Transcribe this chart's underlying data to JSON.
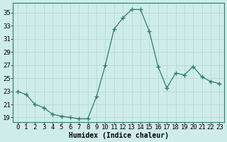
{
  "x": [
    0,
    1,
    2,
    3,
    4,
    5,
    6,
    7,
    8,
    9,
    10,
    11,
    12,
    13,
    14,
    15,
    16,
    17,
    18,
    19,
    20,
    21,
    22,
    23
  ],
  "y": [
    23.0,
    22.5,
    21.0,
    20.5,
    19.5,
    19.2,
    19.0,
    18.8,
    18.8,
    22.2,
    27.0,
    32.5,
    34.2,
    35.5,
    35.5,
    32.2,
    26.8,
    23.5,
    25.8,
    25.5,
    26.8,
    25.2,
    24.5,
    24.2
  ],
  "line_color": "#2d7d6e",
  "marker": "D",
  "marker_size": 2.5,
  "bg_color": "#ceecea",
  "grid_color": "#b8d9d6",
  "xlabel": "Humidex (Indice chaleur)",
  "xlim": [
    -0.5,
    23.5
  ],
  "ylim": [
    18.3,
    36.5
  ],
  "yticks": [
    19,
    21,
    23,
    25,
    27,
    29,
    31,
    33,
    35
  ],
  "xticks": [
    0,
    1,
    2,
    3,
    4,
    5,
    6,
    7,
    8,
    9,
    10,
    11,
    12,
    13,
    14,
    15,
    16,
    17,
    18,
    19,
    20,
    21,
    22,
    23
  ],
  "label_fontsize": 7,
  "tick_fontsize": 6.5
}
